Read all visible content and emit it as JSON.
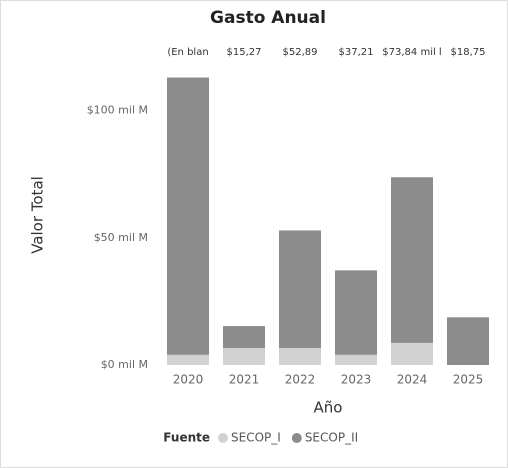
{
  "chart_data": {
    "type": "stacked_bar",
    "title": "Gasto Anual",
    "y_label": "Valor Total",
    "x_label": "Año",
    "legend_title": "Fuente",
    "categories": [
      "2020",
      "2021",
      "2022",
      "2023",
      "2024",
      "2025"
    ],
    "series": [
      {
        "name": "SECOP_I",
        "color": "#d2d2d2",
        "values": [
          4,
          6.7,
          6.7,
          4,
          8.7,
          0
        ]
      },
      {
        "name": "SECOP_II",
        "color": "#8c8c8c",
        "values": [
          109,
          8.6,
          46.2,
          33.2,
          65.1,
          18.75
        ]
      }
    ],
    "total_labels": [
      "(En blan",
      "$15,27",
      "$52,89",
      "$37,21",
      "$73,84 mil l",
      "$18,75"
    ],
    "ylim": [
      0,
      114
    ],
    "yticks": [
      {
        "value": 0,
        "label": "$0 mil M"
      },
      {
        "value": 50,
        "label": "$50 mil M"
      },
      {
        "value": 100,
        "label": "$100 mil M"
      }
    ]
  }
}
